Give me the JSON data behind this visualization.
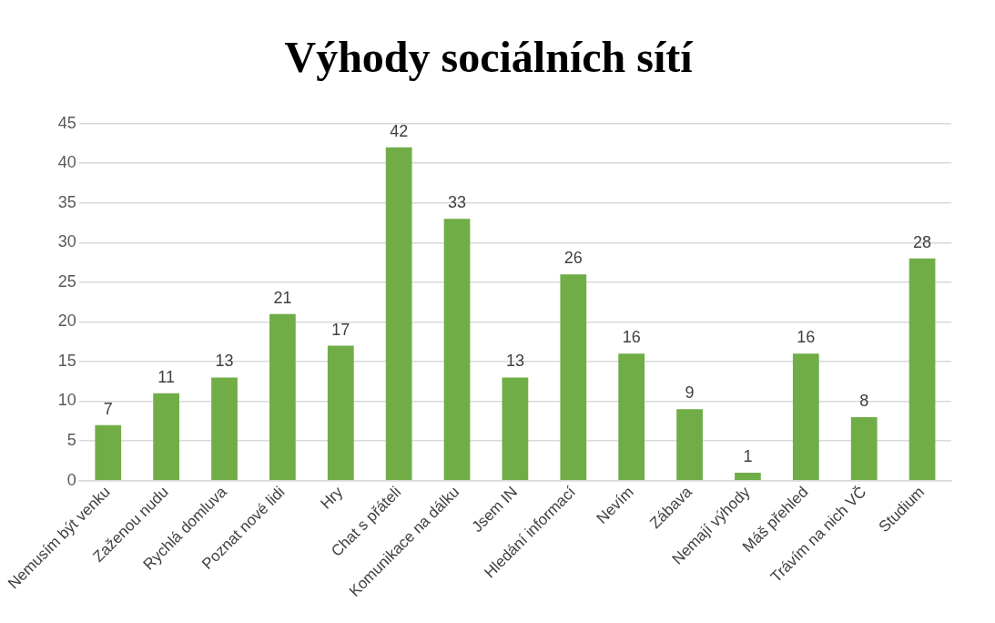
{
  "chart_data": {
    "type": "bar",
    "title": "Výhody sociálních sítí",
    "categories": [
      "Nemusím být venku",
      "Zaženou nudu",
      "Rychlá domluva",
      "Poznat nové lidi",
      "Hry",
      "Chat s přáteli",
      "Komunikace na dálku",
      "Jsem IN",
      "Hledání informací",
      "Nevím",
      "Zábava",
      "Nemají výhody",
      "Máš přehled",
      "Trávím na nich VČ",
      "Studium"
    ],
    "values": [
      7,
      11,
      13,
      21,
      17,
      42,
      33,
      13,
      26,
      16,
      9,
      1,
      16,
      8,
      28
    ],
    "color": "#70ad47",
    "ylim": [
      0,
      45
    ],
    "yticks": [
      0,
      5,
      10,
      15,
      20,
      25,
      30,
      35,
      40,
      45
    ],
    "grid": "y",
    "legend": false,
    "data_labels": true
  }
}
